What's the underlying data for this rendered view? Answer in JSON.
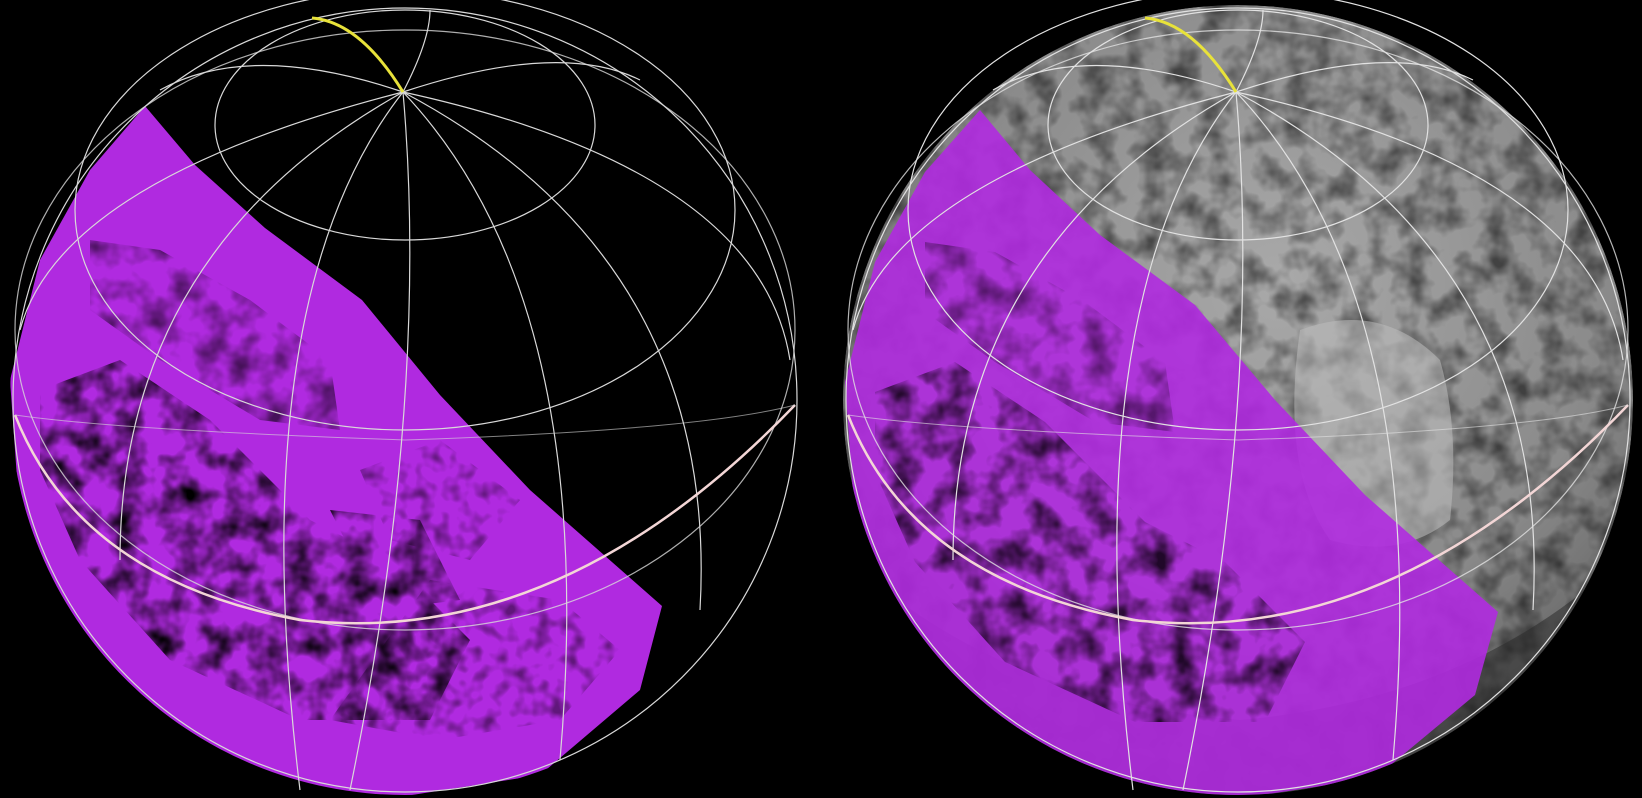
{
  "panels": [
    {
      "id": "left",
      "view": "methane-ice-map-only",
      "colors": {
        "overlay": "#b02ae0",
        "surface": "#000000"
      }
    },
    {
      "id": "right",
      "view": "methane-ice-map-over-surface",
      "colors": {
        "overlay": "#b02ae0",
        "surface": "#8d8d8d"
      }
    }
  ],
  "colors": {
    "background": "#000000",
    "gridlines": "#d9d9d9",
    "equator": "#f3d6d6",
    "meridian_highlight": "#e8e23a"
  }
}
